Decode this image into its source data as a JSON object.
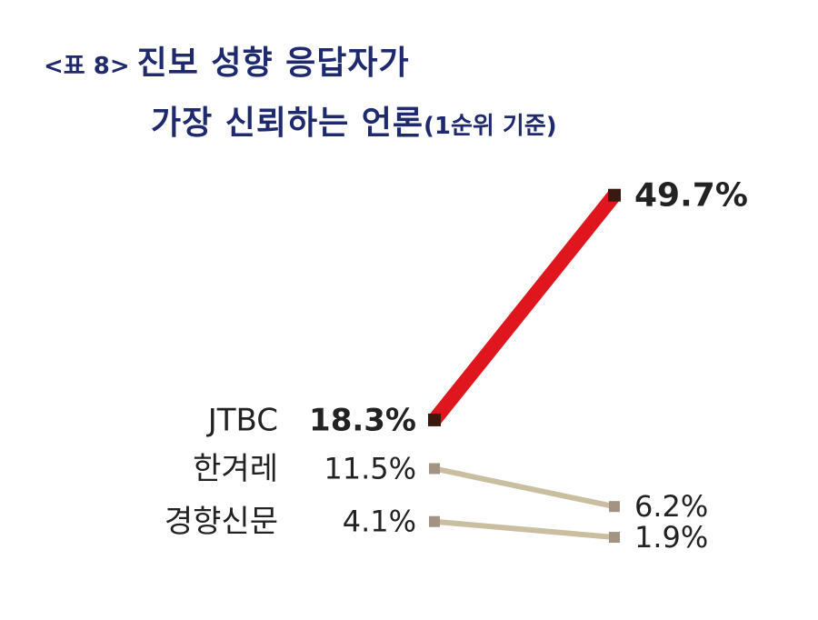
{
  "title": {
    "tag": "<표 8>",
    "line1": "진보 성향 응답자가",
    "line2": "가장 신뢰하는 언론",
    "note": "(1순위 기준)"
  },
  "chart_data": {
    "type": "line",
    "ylim": [
      0,
      55
    ],
    "series": [
      {
        "name": "JTBC",
        "values": [
          18.3,
          49.7
        ],
        "labels": [
          "18.3%",
          "49.7%"
        ],
        "color": "#e0161e",
        "marker": "#3a1a10",
        "bold": true
      },
      {
        "name": "한겨레",
        "values": [
          11.5,
          6.2
        ],
        "labels": [
          "11.5%",
          "6.2%"
        ],
        "color": "#c9bea0",
        "marker": "#a39383",
        "bold": false
      },
      {
        "name": "경향신문",
        "values": [
          4.1,
          1.9
        ],
        "labels": [
          "4.1%",
          "1.9%"
        ],
        "color": "#c9bea0",
        "marker": "#a39383",
        "bold": false
      }
    ]
  }
}
